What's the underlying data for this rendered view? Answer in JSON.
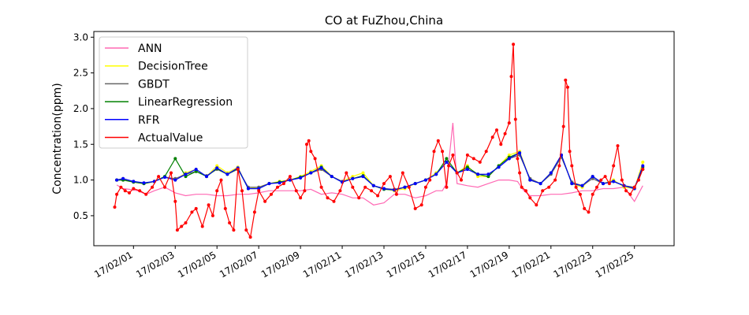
{
  "chart_data": {
    "type": "line",
    "title": "CO at FuZhou,China",
    "xlabel": "",
    "ylabel": "Concentration(ppm)",
    "xlim": [
      -1.9,
      25.9
    ],
    "ylim": [
      0.08,
      3.08
    ],
    "yticks": [
      0.5,
      1.0,
      1.5,
      2.0,
      2.5,
      3.0
    ],
    "ytick_labels": [
      "0.5",
      "1.0",
      "1.5",
      "2.0",
      "2.5",
      "3.0"
    ],
    "x_tick_positions": [
      0,
      2,
      4,
      6,
      8,
      10,
      12,
      14,
      16,
      18,
      20,
      22,
      24
    ],
    "x_tick_labels": [
      "17/02/01",
      "17/02/03",
      "17/02/05",
      "17/02/07",
      "17/02/09",
      "17/02/11",
      "17/02/13",
      "17/02/15",
      "17/02/17",
      "17/02/19",
      "17/02/21",
      "17/02/23",
      "17/02/25"
    ],
    "x_unit_note": "x values are days counted from 17/02/01 (tick label positions)",
    "legend_position": "upper-left",
    "grid": false,
    "series": [
      {
        "name": "ANN",
        "color": "#ff69b4",
        "x": [
          -0.8,
          -0.5,
          -0.2,
          0.2,
          0.6,
          1.0,
          1.5,
          2.0,
          2.5,
          3.0,
          3.5,
          4.0,
          4.5,
          5.0,
          5.5,
          6.0,
          6.5,
          7.0,
          7.5,
          8.0,
          8.5,
          9.0,
          9.5,
          10.0,
          10.5,
          11.0,
          11.5,
          12.0,
          12.5,
          13.0,
          13.5,
          14.0,
          14.5,
          14.8,
          15.0,
          15.3,
          15.5,
          16.0,
          16.5,
          17.0,
          17.5,
          18.0,
          18.4,
          18.7,
          19.0,
          19.5,
          20.0,
          20.5,
          21.0,
          21.5,
          22.0,
          22.5,
          23.0,
          23.5,
          24.0,
          24.4
        ],
        "y": [
          0.93,
          0.88,
          0.87,
          0.85,
          0.8,
          0.85,
          0.9,
          0.82,
          0.78,
          0.8,
          0.8,
          0.78,
          0.78,
          0.8,
          0.8,
          0.82,
          0.85,
          0.85,
          0.85,
          0.85,
          0.87,
          0.8,
          0.82,
          0.8,
          0.75,
          0.75,
          0.65,
          0.68,
          0.8,
          0.8,
          0.75,
          0.78,
          0.85,
          0.85,
          0.95,
          1.8,
          0.95,
          0.92,
          0.9,
          0.95,
          1.0,
          1.0,
          0.98,
          0.85,
          0.78,
          0.78,
          0.8,
          0.8,
          0.82,
          0.85,
          0.85,
          0.88,
          0.88,
          0.9,
          0.7,
          0.92
        ]
      },
      {
        "name": "DecisionTree",
        "color": "#ffff00",
        "x": [
          -0.8,
          -0.5,
          0.0,
          0.5,
          1.0,
          1.5,
          2.0,
          2.5,
          3.0,
          3.5,
          4.0,
          4.5,
          5.0,
          5.5,
          6.0,
          6.5,
          7.0,
          7.5,
          8.0,
          8.5,
          9.0,
          9.5,
          10.0,
          10.5,
          11.0,
          11.5,
          12.0,
          12.5,
          13.0,
          13.5,
          14.0,
          14.5,
          15.0,
          15.5,
          16.0,
          16.5,
          17.0,
          17.5,
          18.0,
          18.5,
          19.0,
          19.5,
          20.0,
          20.5,
          21.0,
          21.5,
          22.0,
          22.5,
          23.0,
          23.5,
          24.0,
          24.4
        ],
        "y": [
          1.0,
          1.02,
          0.97,
          0.95,
          0.98,
          1.05,
          1.0,
          1.1,
          1.15,
          1.05,
          1.2,
          1.1,
          1.18,
          0.88,
          0.9,
          0.95,
          0.98,
          1.0,
          1.05,
          1.12,
          1.2,
          1.05,
          0.98,
          1.05,
          1.1,
          0.92,
          0.88,
          0.85,
          0.88,
          0.95,
          1.0,
          1.1,
          1.25,
          1.1,
          1.2,
          1.05,
          1.05,
          1.2,
          1.35,
          1.4,
          1.0,
          0.95,
          1.1,
          1.35,
          0.95,
          0.9,
          1.05,
          0.95,
          1.0,
          0.9,
          0.88,
          1.25
        ]
      },
      {
        "name": "GBDT",
        "color": "#666666",
        "x": [
          -0.8,
          -0.5,
          0.0,
          0.5,
          1.0,
          1.5,
          2.0,
          2.5,
          3.0,
          3.5,
          4.0,
          4.5,
          5.0,
          5.5,
          6.0,
          6.5,
          7.0,
          7.5,
          8.0,
          8.5,
          9.0,
          9.5,
          10.0,
          10.5,
          11.0,
          11.5,
          12.0,
          12.5,
          13.0,
          13.5,
          14.0,
          14.5,
          15.0,
          15.5,
          16.0,
          16.5,
          17.0,
          17.5,
          18.0,
          18.5,
          19.0,
          19.5,
          20.0,
          20.5,
          21.0,
          21.5,
          22.0,
          22.5,
          23.0,
          23.5,
          24.0,
          24.4
        ],
        "y": [
          1.0,
          1.0,
          0.98,
          0.95,
          0.98,
          1.04,
          1.02,
          1.08,
          1.12,
          1.06,
          1.15,
          1.08,
          1.15,
          0.9,
          0.9,
          0.95,
          0.97,
          1.0,
          1.03,
          1.1,
          1.15,
          1.05,
          0.98,
          1.02,
          1.05,
          0.92,
          0.88,
          0.87,
          0.9,
          0.95,
          1.0,
          1.08,
          1.25,
          1.1,
          1.15,
          1.08,
          1.08,
          1.18,
          1.3,
          1.35,
          1.02,
          0.95,
          1.08,
          1.32,
          0.97,
          0.92,
          1.02,
          0.95,
          0.98,
          0.92,
          0.9,
          1.15
        ]
      },
      {
        "name": "LinearRegression",
        "color": "#008000",
        "x": [
          -0.8,
          -0.5,
          0.0,
          0.5,
          1.0,
          1.5,
          2.0,
          2.5,
          3.0,
          3.5,
          4.0,
          4.5,
          5.0,
          5.5,
          6.0,
          6.5,
          7.0,
          7.5,
          8.0,
          8.5,
          9.0,
          9.5,
          10.0,
          10.5,
          11.0,
          11.5,
          12.0,
          12.5,
          13.0,
          13.5,
          14.0,
          14.5,
          15.0,
          15.5,
          16.0,
          16.5,
          17.0,
          17.5,
          18.0,
          18.5,
          19.0,
          19.5,
          20.0,
          20.5,
          21.0,
          21.5,
          22.0,
          22.5,
          23.0,
          23.5,
          24.0,
          24.4
        ],
        "y": [
          1.0,
          1.0,
          0.97,
          0.95,
          0.98,
          1.05,
          1.3,
          1.05,
          1.12,
          1.05,
          1.16,
          1.08,
          1.16,
          0.88,
          0.88,
          0.95,
          0.97,
          1.0,
          1.04,
          1.1,
          1.18,
          1.05,
          0.97,
          1.02,
          1.06,
          0.92,
          0.87,
          0.86,
          0.9,
          0.95,
          1.0,
          1.08,
          1.3,
          1.1,
          1.18,
          1.08,
          1.05,
          1.2,
          1.32,
          1.38,
          1.0,
          0.95,
          1.1,
          1.35,
          0.95,
          0.92,
          1.05,
          0.95,
          0.98,
          0.92,
          0.88,
          1.18
        ]
      },
      {
        "name": "RFR",
        "color": "#0000ff",
        "x": [
          -0.8,
          -0.5,
          0.0,
          0.5,
          1.0,
          1.5,
          2.0,
          2.5,
          3.0,
          3.5,
          4.0,
          4.5,
          5.0,
          5.5,
          6.0,
          6.5,
          7.0,
          7.5,
          8.0,
          8.5,
          9.0,
          9.5,
          10.0,
          10.5,
          11.0,
          11.5,
          12.0,
          12.5,
          13.0,
          13.5,
          14.0,
          14.5,
          15.0,
          15.5,
          16.0,
          16.5,
          17.0,
          17.5,
          18.0,
          18.5,
          19.0,
          19.5,
          20.0,
          20.5,
          21.0,
          21.5,
          22.0,
          22.5,
          23.0,
          23.5,
          24.0,
          24.4
        ],
        "y": [
          1.0,
          1.02,
          0.98,
          0.96,
          0.98,
          1.04,
          1.0,
          1.08,
          1.15,
          1.05,
          1.17,
          1.08,
          1.17,
          0.88,
          0.88,
          0.95,
          0.96,
          1.0,
          1.03,
          1.1,
          1.17,
          1.05,
          0.97,
          1.02,
          1.05,
          0.92,
          0.88,
          0.86,
          0.9,
          0.95,
          1.0,
          1.08,
          1.25,
          1.1,
          1.15,
          1.08,
          1.08,
          1.18,
          1.3,
          1.38,
          1.0,
          0.95,
          1.1,
          1.35,
          0.95,
          0.92,
          1.05,
          0.95,
          0.98,
          0.92,
          0.88,
          1.2
        ]
      },
      {
        "name": "ActualValue",
        "color": "#ff0000",
        "x": [
          -0.9,
          -0.8,
          -0.6,
          -0.4,
          -0.2,
          0.0,
          0.3,
          0.6,
          0.9,
          1.2,
          1.5,
          1.8,
          2.0,
          2.1,
          2.3,
          2.5,
          2.8,
          3.0,
          3.3,
          3.6,
          3.8,
          4.0,
          4.2,
          4.4,
          4.6,
          4.8,
          5.0,
          5.2,
          5.4,
          5.6,
          5.8,
          6.0,
          6.3,
          6.6,
          6.9,
          7.2,
          7.5,
          7.8,
          8.0,
          8.2,
          8.3,
          8.4,
          8.5,
          8.7,
          9.0,
          9.3,
          9.6,
          9.9,
          10.2,
          10.5,
          10.8,
          11.1,
          11.4,
          11.7,
          12.0,
          12.3,
          12.6,
          12.9,
          13.2,
          13.5,
          13.8,
          14.0,
          14.2,
          14.4,
          14.6,
          14.8,
          15.0,
          15.1,
          15.3,
          15.5,
          15.7,
          16.0,
          16.3,
          16.6,
          16.9,
          17.2,
          17.4,
          17.6,
          17.8,
          18.0,
          18.1,
          18.2,
          18.3,
          18.4,
          18.5,
          18.6,
          18.8,
          19.0,
          19.3,
          19.6,
          19.9,
          20.2,
          20.4,
          20.6,
          20.7,
          20.8,
          20.9,
          21.0,
          21.2,
          21.4,
          21.6,
          21.8,
          22.0,
          22.2,
          22.4,
          22.6,
          22.8,
          23.0,
          23.2,
          23.4,
          23.6,
          23.8,
          24.0,
          24.2,
          24.4
        ],
        "y": [
          0.62,
          0.8,
          0.9,
          0.85,
          0.82,
          0.88,
          0.85,
          0.8,
          0.9,
          1.05,
          0.9,
          1.1,
          0.7,
          0.3,
          0.35,
          0.4,
          0.55,
          0.6,
          0.35,
          0.65,
          0.5,
          0.85,
          1.0,
          0.6,
          0.4,
          0.3,
          1.15,
          0.85,
          0.3,
          0.2,
          0.55,
          0.85,
          0.7,
          0.8,
          0.9,
          0.95,
          1.05,
          0.85,
          0.75,
          0.85,
          1.5,
          1.55,
          1.4,
          1.3,
          0.9,
          0.75,
          0.7,
          0.85,
          1.1,
          0.9,
          0.75,
          0.9,
          0.85,
          0.78,
          0.95,
          1.05,
          0.8,
          1.1,
          0.9,
          0.6,
          0.65,
          0.9,
          1.0,
          1.4,
          1.55,
          1.4,
          0.9,
          1.2,
          1.35,
          1.1,
          1.0,
          1.35,
          1.3,
          1.25,
          1.4,
          1.6,
          1.7,
          1.5,
          1.65,
          1.8,
          2.45,
          2.9,
          1.85,
          1.3,
          1.1,
          0.9,
          0.85,
          0.75,
          0.65,
          0.85,
          0.9,
          1.0,
          1.2,
          1.75,
          2.4,
          2.3,
          1.4,
          1.2,
          0.9,
          0.8,
          0.6,
          0.55,
          0.8,
          0.9,
          1.0,
          1.05,
          0.95,
          1.2,
          1.48,
          1.0,
          0.85,
          0.8,
          0.9,
          1.0,
          1.15
        ]
      }
    ]
  }
}
